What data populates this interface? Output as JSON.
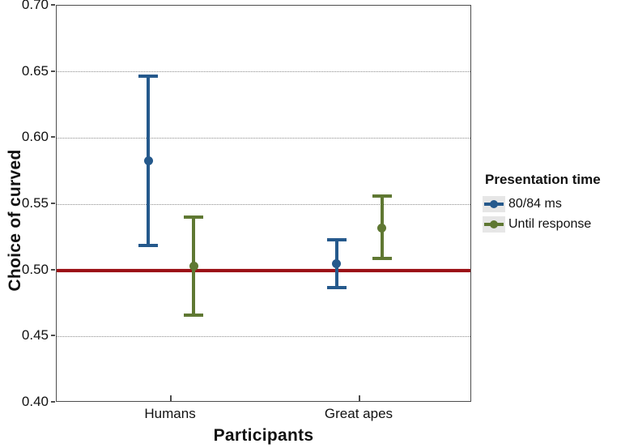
{
  "chart_data": {
    "type": "errorbar",
    "title": "",
    "xlabel": "Participants",
    "ylabel": "Choice of curved",
    "ylim": [
      0.4,
      0.7
    ],
    "ytick_labels": [
      "0.40",
      "0.45",
      "0.50",
      "0.55",
      "0.60",
      "0.65",
      "0.70"
    ],
    "yticks": [
      0.4,
      0.45,
      0.5,
      0.55,
      0.6,
      0.65,
      0.7
    ],
    "categories": [
      "Humans",
      "Great apes"
    ],
    "grid": "horizontal-dotted",
    "legend": {
      "title": "Presentation time",
      "position": "right",
      "entries": [
        "80/84 ms",
        "Until response"
      ]
    },
    "reference_line": {
      "y": 0.5,
      "color": "#9b1116"
    },
    "colors": {
      "series1": "#25598c",
      "series2": "#5f7832",
      "reference": "#9b1116"
    },
    "series": [
      {
        "name": "80/84 ms",
        "color": "#25598c",
        "points": [
          {
            "category": "Humans",
            "mean": 0.583,
            "ci_low": 0.519,
            "ci_high": 0.647
          },
          {
            "category": "Great apes",
            "mean": 0.505,
            "ci_low": 0.487,
            "ci_high": 0.523
          }
        ]
      },
      {
        "name": "Until response",
        "color": "#5f7832",
        "points": [
          {
            "category": "Humans",
            "mean": 0.503,
            "ci_low": 0.466,
            "ci_high": 0.54
          },
          {
            "category": "Great apes",
            "mean": 0.532,
            "ci_low": 0.509,
            "ci_high": 0.556
          }
        ]
      }
    ]
  }
}
